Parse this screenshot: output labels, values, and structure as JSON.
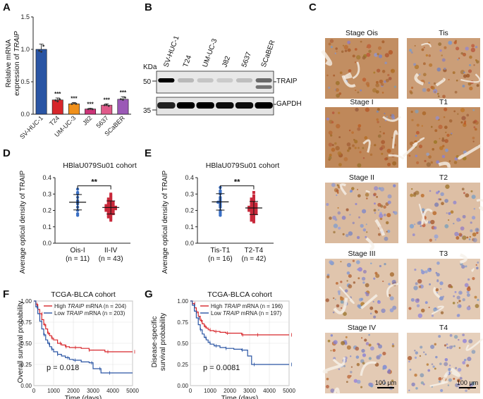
{
  "panels": {
    "A": "A",
    "B": "B",
    "C": "C",
    "D": "D",
    "E": "E",
    "F": "F",
    "G": "G"
  },
  "colors": {
    "red": "#d7262b",
    "orange": "#f0901a",
    "magenta": "#cc3377",
    "pink": "#e05a8a",
    "purple": "#9b59b6",
    "blue": "#2a55a4",
    "scatter_blue": "#3a6fc4",
    "scatter_red": "#c8283a",
    "tissue_brown": "#b9783c"
  },
  "chart_data": [
    {
      "id": "A",
      "type": "bar",
      "ylabel_line1": "Relative mRNA",
      "ylabel_line2_prefix": "expression of ",
      "ylabel_line2_gene": "TRAIP",
      "ylim": [
        0,
        1.5
      ],
      "yticks": [
        "0.0",
        "0.5",
        "1.0",
        "1.5"
      ],
      "ytick_values": [
        0,
        0.5,
        1.0,
        1.5
      ],
      "categories": [
        "SV-HUC-1",
        "T24",
        "UM-UC-3",
        "J82",
        "5637",
        "SCaBER"
      ],
      "values": [
        1.0,
        0.22,
        0.16,
        0.08,
        0.14,
        0.23
      ],
      "errors": [
        0.08,
        0.03,
        0.02,
        0.01,
        0.02,
        0.04
      ],
      "significance": [
        "",
        "***",
        "***",
        "***",
        "***",
        "***"
      ],
      "bar_colors": [
        "#2a55a4",
        "#d7262b",
        "#f0901a",
        "#cc3377",
        "#e05a8a",
        "#9b59b6"
      ]
    },
    {
      "id": "D",
      "type": "scatter",
      "title": "HBlaU079Su01 cohort",
      "ylabel": "Average optical density of TRAIP",
      "ylim": [
        0.0,
        0.4
      ],
      "yticks": [
        "0.0",
        "0.1",
        "0.2",
        "0.3",
        "0.4"
      ],
      "ytick_values": [
        0.0,
        0.1,
        0.2,
        0.3,
        0.4
      ],
      "groups": [
        {
          "name": "Ois-I",
          "n_label": "(n = 11)",
          "mean": 0.25,
          "sd": 0.047,
          "values": [
            0.33,
            0.31,
            0.3,
            0.28,
            0.26,
            0.25,
            0.24,
            0.22,
            0.2,
            0.18,
            0.17
          ]
        },
        {
          "name": "II-IV",
          "n_label": "(n = 43)",
          "mean": 0.218,
          "sd": 0.04,
          "values": [
            0.3,
            0.29,
            0.28,
            0.27,
            0.27,
            0.26,
            0.26,
            0.25,
            0.25,
            0.25,
            0.24,
            0.24,
            0.24,
            0.23,
            0.23,
            0.23,
            0.23,
            0.22,
            0.22,
            0.22,
            0.22,
            0.22,
            0.21,
            0.21,
            0.21,
            0.21,
            0.21,
            0.2,
            0.2,
            0.2,
            0.2,
            0.19,
            0.19,
            0.19,
            0.18,
            0.18,
            0.18,
            0.17,
            0.17,
            0.16,
            0.16,
            0.15,
            0.14
          ]
        }
      ],
      "significance": "**"
    },
    {
      "id": "E",
      "type": "scatter",
      "title": "HBlaU079Su01 cohort",
      "ylabel": "Average optical density of TRAIP",
      "ylim": [
        0.0,
        0.4
      ],
      "yticks": [
        "0.0",
        "0.1",
        "0.2",
        "0.3",
        "0.4"
      ],
      "ytick_values": [
        0.0,
        0.1,
        0.2,
        0.3,
        0.4
      ],
      "groups": [
        {
          "name": "Tis-T1",
          "n_label": "(n = 16)",
          "mean": 0.252,
          "sd": 0.05,
          "values": [
            0.34,
            0.32,
            0.31,
            0.3,
            0.28,
            0.27,
            0.26,
            0.25,
            0.25,
            0.24,
            0.23,
            0.22,
            0.2,
            0.19,
            0.18,
            0.17
          ]
        },
        {
          "name": "T2-T4",
          "n_label": "(n = 42)",
          "mean": 0.215,
          "sd": 0.04,
          "values": [
            0.31,
            0.29,
            0.28,
            0.27,
            0.27,
            0.26,
            0.26,
            0.25,
            0.25,
            0.24,
            0.24,
            0.24,
            0.23,
            0.23,
            0.23,
            0.22,
            0.22,
            0.22,
            0.22,
            0.21,
            0.21,
            0.21,
            0.21,
            0.2,
            0.2,
            0.2,
            0.2,
            0.19,
            0.19,
            0.19,
            0.18,
            0.18,
            0.18,
            0.17,
            0.17,
            0.16,
            0.16,
            0.15,
            0.15,
            0.14,
            0.14,
            0.13
          ]
        }
      ],
      "significance": "**"
    },
    {
      "id": "F",
      "type": "line",
      "title": "TCGA-BLCA cohort",
      "ylabel": "Overall  survival probability",
      "xlabel": "Time (days)",
      "xlim": [
        0,
        5000
      ],
      "ylim": [
        0,
        1
      ],
      "xticks": [
        "0",
        "1000",
        "2000",
        "3000",
        "4000",
        "5000"
      ],
      "xtick_values": [
        0,
        1000,
        2000,
        3000,
        4000,
        5000
      ],
      "yticks": [
        "0.00",
        "0.25",
        "0.50",
        "0.75",
        "1.00"
      ],
      "ytick_values": [
        0,
        0.25,
        0.5,
        0.75,
        1.0
      ],
      "pvalue": "p = 0.018",
      "series": [
        {
          "name": "High",
          "legend_prefix": "High ",
          "legend_gene": "TRAIP",
          "legend_suffix": " mRNA (n = 204)",
          "color": "#d7262b",
          "x": [
            0,
            100,
            200,
            300,
            400,
            500,
            600,
            700,
            800,
            900,
            1000,
            1200,
            1400,
            1600,
            1800,
            2000,
            2400,
            2800,
            3200,
            3600,
            4000,
            5000
          ],
          "y": [
            1.0,
            0.96,
            0.9,
            0.85,
            0.78,
            0.72,
            0.67,
            0.62,
            0.59,
            0.56,
            0.54,
            0.5,
            0.48,
            0.46,
            0.45,
            0.45,
            0.44,
            0.42,
            0.42,
            0.4,
            0.4,
            0.4
          ]
        },
        {
          "name": "Low",
          "legend_prefix": "Low ",
          "legend_gene": "TRAIP",
          "legend_suffix": " mRNA (n = 203)",
          "color": "#2a55a4",
          "x": [
            0,
            100,
            200,
            300,
            400,
            500,
            600,
            700,
            800,
            900,
            1000,
            1200,
            1400,
            1600,
            1800,
            2000,
            2400,
            2800,
            3000,
            3200,
            3400,
            3800,
            5000
          ],
          "y": [
            1.0,
            0.93,
            0.85,
            0.76,
            0.67,
            0.6,
            0.54,
            0.5,
            0.46,
            0.43,
            0.4,
            0.37,
            0.35,
            0.33,
            0.31,
            0.3,
            0.28,
            0.27,
            0.2,
            0.2,
            0.15,
            0.15,
            0.15
          ]
        }
      ]
    },
    {
      "id": "G",
      "type": "line",
      "title": "TCGA-BLCA cohort",
      "ylabel_line1": "Disease-specific",
      "ylabel_line2": "survival probability",
      "xlabel": "Time (days)",
      "xlim": [
        0,
        5000
      ],
      "ylim": [
        0,
        1
      ],
      "xticks": [
        "0",
        "1000",
        "2000",
        "3000",
        "4000",
        "5000"
      ],
      "xtick_values": [
        0,
        1000,
        2000,
        3000,
        4000,
        5000
      ],
      "yticks": [
        "0.00",
        "0.25",
        "0.50",
        "0.75",
        "1.00"
      ],
      "ytick_values": [
        0,
        0.25,
        0.5,
        0.75,
        1.0
      ],
      "pvalue": "p = 0.0081",
      "series": [
        {
          "name": "High",
          "legend_prefix": "High ",
          "legend_gene": "TRAIP",
          "legend_suffix": " mRNA (n = 196)",
          "color": "#d7262b",
          "x": [
            0,
            100,
            200,
            300,
            400,
            500,
            600,
            700,
            800,
            900,
            1000,
            1200,
            1500,
            1800,
            2200,
            2600,
            3000,
            3400,
            4000,
            5000
          ],
          "y": [
            1.0,
            0.97,
            0.92,
            0.87,
            0.82,
            0.77,
            0.73,
            0.7,
            0.68,
            0.66,
            0.65,
            0.64,
            0.63,
            0.62,
            0.62,
            0.6,
            0.6,
            0.6,
            0.6,
            0.6
          ]
        },
        {
          "name": "Low",
          "legend_prefix": "Low ",
          "legend_gene": "TRAIP",
          "legend_suffix": " mRNA (n = 197)",
          "color": "#2a55a4",
          "x": [
            0,
            100,
            200,
            300,
            400,
            500,
            600,
            700,
            800,
            900,
            1000,
            1200,
            1500,
            1800,
            2200,
            2600,
            2900,
            3100,
            3500,
            5000
          ],
          "y": [
            1.0,
            0.95,
            0.88,
            0.8,
            0.72,
            0.66,
            0.61,
            0.57,
            0.54,
            0.51,
            0.49,
            0.47,
            0.45,
            0.44,
            0.43,
            0.42,
            0.35,
            0.25,
            0.25,
            0.25
          ]
        }
      ]
    }
  ],
  "blot": {
    "kda_label": "KDa",
    "marker_50": "50",
    "marker_35": "35",
    "lanes": [
      "SV-HUC-1",
      "T24",
      "UM-UC-3",
      "J82",
      "5637",
      "SCaBER"
    ],
    "target": "TRAIP",
    "loading": "GAPDH",
    "traip_intensity": [
      1.0,
      0.2,
      0.15,
      0.12,
      0.18,
      0.55
    ],
    "gapdh_intensity": [
      0.85,
      1.0,
      1.0,
      0.95,
      0.95,
      1.0
    ]
  },
  "ihc": {
    "tiles": [
      {
        "label": "Stage Ois",
        "stain": 0.85
      },
      {
        "label": "Tis",
        "stain": 0.7
      },
      {
        "label": "Stage I",
        "stain": 0.9
      },
      {
        "label": "T1",
        "stain": 0.85
      },
      {
        "label": "Stage II",
        "stain": 0.45
      },
      {
        "label": "T2",
        "stain": 0.4
      },
      {
        "label": "Stage III",
        "stain": 0.35
      },
      {
        "label": "T3",
        "stain": 0.3
      },
      {
        "label": "Stage IV",
        "stain": 0.3
      },
      {
        "label": "T4",
        "stain": 0.25
      }
    ],
    "scale_bar": "100 μm"
  }
}
